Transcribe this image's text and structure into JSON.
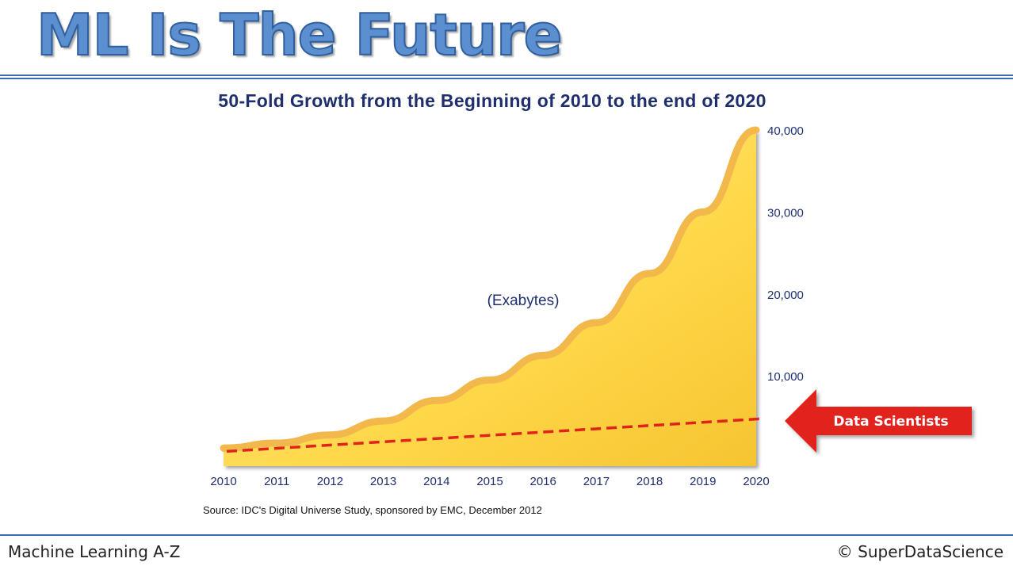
{
  "slide": {
    "title": "ML Is The Future",
    "footer_left": "Machine Learning A-Z",
    "footer_right": "© SuperDataScience"
  },
  "chart_data": {
    "type": "area",
    "title": "50-Fold Growth from the Beginning of 2010 to the end of 2020",
    "unit_label": "(Exabytes)",
    "source": "Source: IDC's Digital Universe Study, sponsored by EMC, December 2012",
    "x": [
      "2010",
      "2011",
      "2012",
      "2013",
      "2014",
      "2015",
      "2016",
      "2017",
      "2018",
      "2019",
      "2020"
    ],
    "series": [
      {
        "values": [
          1200,
          1800,
          2800,
          4500,
          7000,
          9500,
          12500,
          16500,
          22500,
          30000,
          40000
        ],
        "color": "#ffd84a"
      }
    ],
    "y_ticks": [
      "10,000",
      "20,000",
      "30,000",
      "40,000"
    ],
    "ylim": [
      -1000,
      40000
    ],
    "y_axis_position": "right",
    "grid": false,
    "annotation": {
      "label": "Data Scientists",
      "type": "dashed-trend-line",
      "start_value": 800,
      "end_value": 4800,
      "line_color": "#e2231a",
      "arrow_color": "#e2231a"
    }
  }
}
